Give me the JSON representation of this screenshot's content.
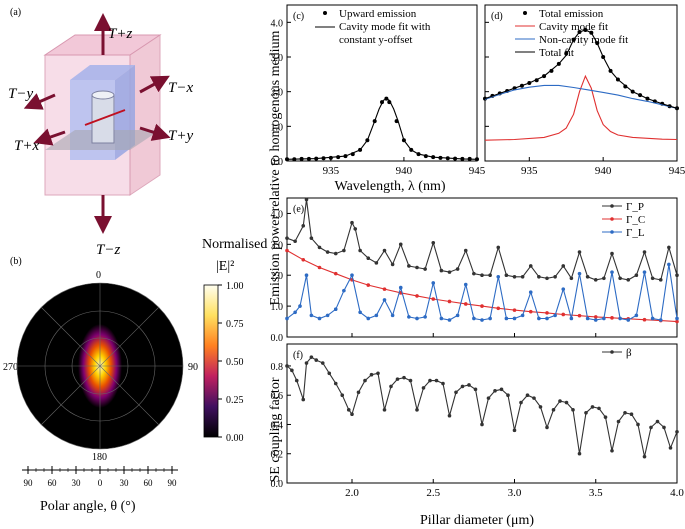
{
  "panels": {
    "a": {
      "label": "(a)",
      "transmission_labels": [
        "T+z",
        "T−x",
        "T−y",
        "T+y",
        "T+x",
        "T−z"
      ]
    },
    "b": {
      "label": "(b)",
      "angle_labels": [
        "0",
        "90",
        "180",
        "270"
      ],
      "colorbar_title_line1": "Normalised",
      "colorbar_title_line2": "|E|²",
      "colorbar_ticks": [
        "1.00",
        "0.75",
        "0.50",
        "0.25",
        "0.00"
      ],
      "polar_axis_ticks": [
        "90",
        "60",
        "30",
        "0",
        "30",
        "60",
        "90"
      ],
      "polar_axis_label": "Polar angle, θ (°)"
    }
  },
  "chart_data": [
    {
      "id": "c",
      "label": "(c)",
      "type": "line",
      "xlim": [
        932,
        945
      ],
      "ylim": [
        0,
        4.5
      ],
      "xticks": [
        935,
        940,
        945
      ],
      "yticks": [
        0.0,
        1.0,
        2.0,
        3.0,
        4.0
      ],
      "legend": [
        "Upward emission",
        "Cavity mode fit with",
        "constant y-offset"
      ],
      "series": [
        {
          "name": "Upward emission",
          "style": "points",
          "x": [
            932,
            932.5,
            933,
            933.5,
            934,
            934.5,
            935,
            935.5,
            936,
            936.5,
            937,
            937.5,
            938,
            938.5,
            938.8,
            939,
            939.5,
            940,
            940.5,
            941,
            941.5,
            942,
            942.5,
            943,
            943.5,
            944,
            944.5,
            945
          ],
          "y": [
            0.05,
            0.05,
            0.06,
            0.06,
            0.07,
            0.08,
            0.09,
            0.11,
            0.14,
            0.2,
            0.32,
            0.6,
            1.15,
            1.7,
            1.8,
            1.7,
            1.15,
            0.6,
            0.32,
            0.2,
            0.14,
            0.11,
            0.09,
            0.08,
            0.07,
            0.06,
            0.06,
            0.05
          ]
        },
        {
          "name": "Cavity mode fit",
          "style": "line",
          "x": [
            932,
            934,
            936,
            937,
            937.5,
            938,
            938.3,
            938.6,
            938.8,
            939,
            939.3,
            939.6,
            940,
            940.5,
            941,
            942,
            944,
            945
          ],
          "y": [
            0.05,
            0.07,
            0.14,
            0.32,
            0.6,
            1.15,
            1.5,
            1.75,
            1.8,
            1.75,
            1.5,
            1.15,
            0.6,
            0.32,
            0.2,
            0.11,
            0.06,
            0.05
          ]
        }
      ]
    },
    {
      "id": "d",
      "label": "(d)",
      "type": "line",
      "xlim": [
        932,
        945
      ],
      "ylim": [
        0,
        4.5
      ],
      "xticks": [
        935,
        940,
        945
      ],
      "yticks": [
        0,
        1,
        2,
        3,
        4
      ],
      "legend": [
        "Total emission",
        "Cavity mode fit",
        "Non-cavity mode fit",
        "Total fit"
      ],
      "series": [
        {
          "name": "Total emission",
          "style": "points",
          "color": "#000000",
          "x": [
            932,
            932.5,
            933,
            933.5,
            934,
            934.5,
            935,
            935.5,
            936,
            936.5,
            937,
            937.5,
            938,
            938.4,
            938.8,
            939.2,
            939.6,
            940,
            940.5,
            941,
            941.5,
            942,
            942.5,
            943,
            943.5,
            944,
            944.5,
            945
          ],
          "y": [
            1.8,
            1.88,
            1.95,
            2.02,
            2.1,
            2.17,
            2.25,
            2.33,
            2.45,
            2.6,
            2.8,
            3.1,
            3.5,
            3.72,
            3.78,
            3.7,
            3.4,
            3.0,
            2.6,
            2.35,
            2.15,
            2.0,
            1.9,
            1.8,
            1.72,
            1.65,
            1.58,
            1.52
          ]
        },
        {
          "name": "Cavity mode fit",
          "style": "line",
          "color": "#e03030",
          "x": [
            932,
            934,
            936,
            937,
            937.5,
            938,
            938.4,
            938.8,
            939.2,
            939.6,
            940,
            940.5,
            941,
            942,
            944,
            945
          ],
          "y": [
            0.6,
            0.62,
            0.68,
            0.8,
            0.95,
            1.35,
            2.0,
            2.45,
            2.1,
            1.45,
            1.05,
            0.85,
            0.75,
            0.68,
            0.63,
            0.62
          ]
        },
        {
          "name": "Non-cavity mode fit",
          "style": "line",
          "color": "#2d6bc4",
          "x": [
            932,
            933,
            934,
            935,
            936,
            937,
            938,
            939,
            940,
            941,
            942,
            943,
            944,
            945
          ],
          "y": [
            1.78,
            1.92,
            2.05,
            2.13,
            2.18,
            2.18,
            2.12,
            2.05,
            1.98,
            1.9,
            1.8,
            1.72,
            1.62,
            1.52
          ]
        },
        {
          "name": "Total fit",
          "style": "line",
          "color": "#000000",
          "x": [
            932,
            933,
            934,
            935,
            936,
            937,
            937.5,
            938,
            938.4,
            938.8,
            939.2,
            939.6,
            940,
            940.5,
            941,
            942,
            943,
            944,
            945
          ],
          "y": [
            1.8,
            1.95,
            2.1,
            2.25,
            2.45,
            2.8,
            3.05,
            3.5,
            3.72,
            3.78,
            3.7,
            3.4,
            3.0,
            2.6,
            2.35,
            2.0,
            1.8,
            1.65,
            1.52
          ]
        }
      ]
    },
    {
      "id": "e",
      "label": "(e)",
      "type": "line",
      "xlim": [
        1.6,
        4.0
      ],
      "ylim": [
        0,
        4.5
      ],
      "xticks": [
        2.0,
        2.5,
        3.0,
        3.5,
        4.0
      ],
      "yticks": [
        0.0,
        1.0,
        2.0,
        3.0,
        4.0
      ],
      "legend": [
        "Γ_P",
        "Γ_C",
        "Γ_L"
      ],
      "series": [
        {
          "name": "Γ_P",
          "color": "#333333",
          "x": [
            1.6,
            1.65,
            1.7,
            1.72,
            1.75,
            1.8,
            1.85,
            1.9,
            1.95,
            2.0,
            2.02,
            2.05,
            2.1,
            2.15,
            2.2,
            2.25,
            2.3,
            2.35,
            2.4,
            2.45,
            2.5,
            2.55,
            2.6,
            2.65,
            2.7,
            2.75,
            2.8,
            2.85,
            2.9,
            2.95,
            3.0,
            3.05,
            3.1,
            3.15,
            3.2,
            3.25,
            3.3,
            3.35,
            3.4,
            3.45,
            3.5,
            3.55,
            3.6,
            3.65,
            3.7,
            3.75,
            3.8,
            3.85,
            3.9,
            3.95,
            4.0
          ],
          "y": [
            3.2,
            3.1,
            3.6,
            4.45,
            3.2,
            2.9,
            2.75,
            2.7,
            2.8,
            3.7,
            3.5,
            2.8,
            2.55,
            2.4,
            2.8,
            2.35,
            3.0,
            2.3,
            2.25,
            2.2,
            3.05,
            2.15,
            2.1,
            2.2,
            2.8,
            2.05,
            2.0,
            2.0,
            2.9,
            2.0,
            1.95,
            1.95,
            2.3,
            1.95,
            1.9,
            1.95,
            2.3,
            1.9,
            2.75,
            1.95,
            1.85,
            1.9,
            2.7,
            1.9,
            1.85,
            2.0,
            2.75,
            1.9,
            1.85,
            2.9,
            2.0
          ]
        },
        {
          "name": "Γ_C",
          "color": "#e03030",
          "x": [
            1.6,
            1.7,
            1.8,
            1.9,
            2.0,
            2.1,
            2.2,
            2.3,
            2.4,
            2.5,
            2.6,
            2.7,
            2.8,
            2.9,
            3.0,
            3.1,
            3.2,
            3.3,
            3.4,
            3.5,
            3.6,
            3.7,
            3.8,
            3.9,
            4.0
          ],
          "y": [
            2.8,
            2.5,
            2.25,
            2.05,
            1.85,
            1.68,
            1.55,
            1.43,
            1.33,
            1.23,
            1.15,
            1.07,
            1.0,
            0.93,
            0.87,
            0.82,
            0.78,
            0.73,
            0.69,
            0.65,
            0.62,
            0.59,
            0.56,
            0.53,
            0.5
          ]
        },
        {
          "name": "Γ_L",
          "color": "#2d6bc4",
          "x": [
            1.6,
            1.65,
            1.68,
            1.72,
            1.75,
            1.8,
            1.85,
            1.9,
            1.95,
            2.0,
            2.05,
            2.1,
            2.15,
            2.2,
            2.25,
            2.3,
            2.35,
            2.4,
            2.45,
            2.5,
            2.55,
            2.6,
            2.65,
            2.7,
            2.75,
            2.8,
            2.85,
            2.9,
            2.95,
            3.0,
            3.05,
            3.1,
            3.15,
            3.2,
            3.25,
            3.3,
            3.35,
            3.4,
            3.45,
            3.5,
            3.55,
            3.6,
            3.65,
            3.7,
            3.75,
            3.8,
            3.85,
            3.9,
            3.95,
            4.0
          ],
          "y": [
            0.6,
            0.8,
            1.0,
            2.0,
            0.7,
            0.6,
            0.7,
            0.9,
            1.5,
            2.0,
            0.8,
            0.6,
            0.7,
            1.2,
            0.7,
            1.6,
            0.65,
            0.6,
            0.65,
            1.75,
            0.6,
            0.55,
            0.7,
            1.7,
            0.6,
            0.55,
            0.6,
            1.95,
            0.6,
            0.6,
            0.7,
            1.45,
            0.6,
            0.6,
            0.7,
            1.55,
            0.6,
            2.05,
            0.6,
            0.55,
            0.6,
            2.1,
            0.6,
            0.55,
            0.7,
            2.1,
            0.6,
            0.55,
            2.35,
            0.6
          ]
        }
      ]
    },
    {
      "id": "f",
      "label": "(f)",
      "type": "line",
      "xlim": [
        1.6,
        4.0
      ],
      "ylim": [
        0,
        0.95
      ],
      "xticks": [
        2.0,
        2.5,
        3.0,
        3.5,
        4.0
      ],
      "xticklabels": [
        "2.0",
        "2.5",
        "3.0",
        "3.5",
        "4.0"
      ],
      "yticks": [
        0.0,
        0.2,
        0.4,
        0.6,
        0.8
      ],
      "legend": [
        "β"
      ],
      "series": [
        {
          "name": "β",
          "color": "#333333",
          "x": [
            1.6,
            1.63,
            1.66,
            1.7,
            1.72,
            1.75,
            1.78,
            1.82,
            1.86,
            1.9,
            1.94,
            1.98,
            2.0,
            2.04,
            2.08,
            2.12,
            2.16,
            2.2,
            2.24,
            2.28,
            2.32,
            2.36,
            2.4,
            2.44,
            2.48,
            2.52,
            2.56,
            2.6,
            2.64,
            2.68,
            2.72,
            2.76,
            2.8,
            2.84,
            2.88,
            2.92,
            2.96,
            3.0,
            3.04,
            3.08,
            3.12,
            3.16,
            3.2,
            3.24,
            3.28,
            3.32,
            3.36,
            3.4,
            3.44,
            3.48,
            3.52,
            3.56,
            3.6,
            3.64,
            3.68,
            3.72,
            3.76,
            3.8,
            3.84,
            3.88,
            3.92,
            3.96,
            4.0
          ],
          "y": [
            0.8,
            0.77,
            0.7,
            0.57,
            0.82,
            0.86,
            0.84,
            0.82,
            0.75,
            0.68,
            0.6,
            0.5,
            0.47,
            0.62,
            0.7,
            0.74,
            0.75,
            0.5,
            0.66,
            0.71,
            0.72,
            0.7,
            0.5,
            0.65,
            0.7,
            0.7,
            0.68,
            0.46,
            0.62,
            0.66,
            0.67,
            0.64,
            0.4,
            0.58,
            0.63,
            0.64,
            0.6,
            0.36,
            0.55,
            0.6,
            0.58,
            0.52,
            0.38,
            0.5,
            0.56,
            0.55,
            0.5,
            0.2,
            0.48,
            0.52,
            0.51,
            0.45,
            0.22,
            0.42,
            0.48,
            0.47,
            0.4,
            0.18,
            0.38,
            0.42,
            0.38,
            0.24,
            0.35
          ]
        }
      ]
    }
  ],
  "shared_labels": {
    "wavelength_axis": "Wavelength, λ (nm)",
    "top_ylabel": "Emission power relative to homogenous medium",
    "bottom_xlabel": "Pillar diameter (μm)",
    "beta_ylabel": "SE coupling factor"
  },
  "colors": {
    "red": "#e03030",
    "blue": "#2d6bc4",
    "dark": "#333333",
    "arrow": "#7a1030"
  }
}
